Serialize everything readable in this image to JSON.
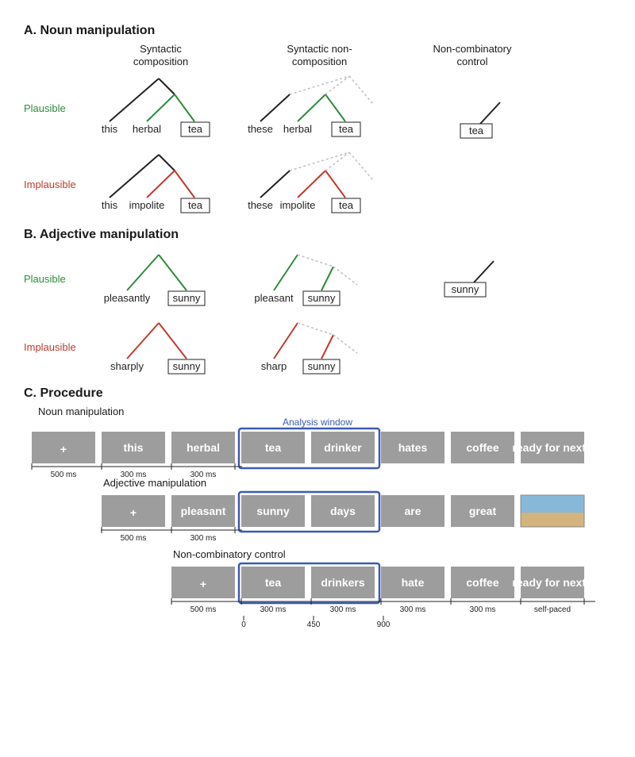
{
  "sections": {
    "A": "A. Noun manipulation",
    "B": "B. Adjective manipulation",
    "C": "C. Procedure"
  },
  "columns": {
    "c1_l1": "Syntactic",
    "c1_l2": "composition",
    "c2_l1": "Syntactic non-",
    "c2_l2": "composition",
    "c3_l1": "Non-combinatory",
    "c3_l2": "control"
  },
  "rows": {
    "plaus": "Plausible",
    "implaus": "Implausible"
  },
  "colors": {
    "plaus": "#2e8b3c",
    "implaus": "#c23a2b",
    "black": "#222222",
    "dashed": "#bfbfbf",
    "box_gray": "#9d9d9d",
    "analysis_blue": "#3b5bb5",
    "ready_yellow": "#f5e63a"
  },
  "trees": {
    "noun": {
      "plaus_comp": [
        "this",
        "herbal",
        "tea"
      ],
      "plaus_noncomp": [
        "these",
        "herbal",
        "tea"
      ],
      "implaus_comp": [
        "this",
        "impolite",
        "tea"
      ],
      "implaus_noncomp": [
        "these",
        "impolite",
        "tea"
      ],
      "control": "tea"
    },
    "adj": {
      "plaus_comp": [
        "pleasantly",
        "sunny"
      ],
      "plaus_noncomp": [
        "pleasant",
        "sunny"
      ],
      "implaus_comp": [
        "sharply",
        "sunny"
      ],
      "implaus_noncomp": [
        "sharp",
        "sunny"
      ],
      "control": "sunny"
    }
  },
  "procedure": {
    "analysis_window": "Analysis window",
    "noun_row_label": "Noun manipulation",
    "adj_row_label": "Adjective manipulation",
    "control_row_label": "Non-combinatory control",
    "noun_seq": [
      "+",
      "this",
      "herbal",
      "tea",
      "drinker",
      "hates",
      "coffee",
      "ready for next?"
    ],
    "adj_seq": [
      "+",
      "pleasant",
      "sunny",
      "days",
      "are",
      "great",
      "IMG"
    ],
    "ctrl_seq": [
      "+",
      "tea",
      "drinkers",
      "hate",
      "coffee",
      "ready for next?"
    ],
    "durations": {
      "d0": "500 ms",
      "d1": "300 ms",
      "d2": "300 ms",
      "selfpaced": "self-paced"
    },
    "timeline": {
      "t0": "0",
      "t1": "450",
      "t2": "900"
    }
  }
}
